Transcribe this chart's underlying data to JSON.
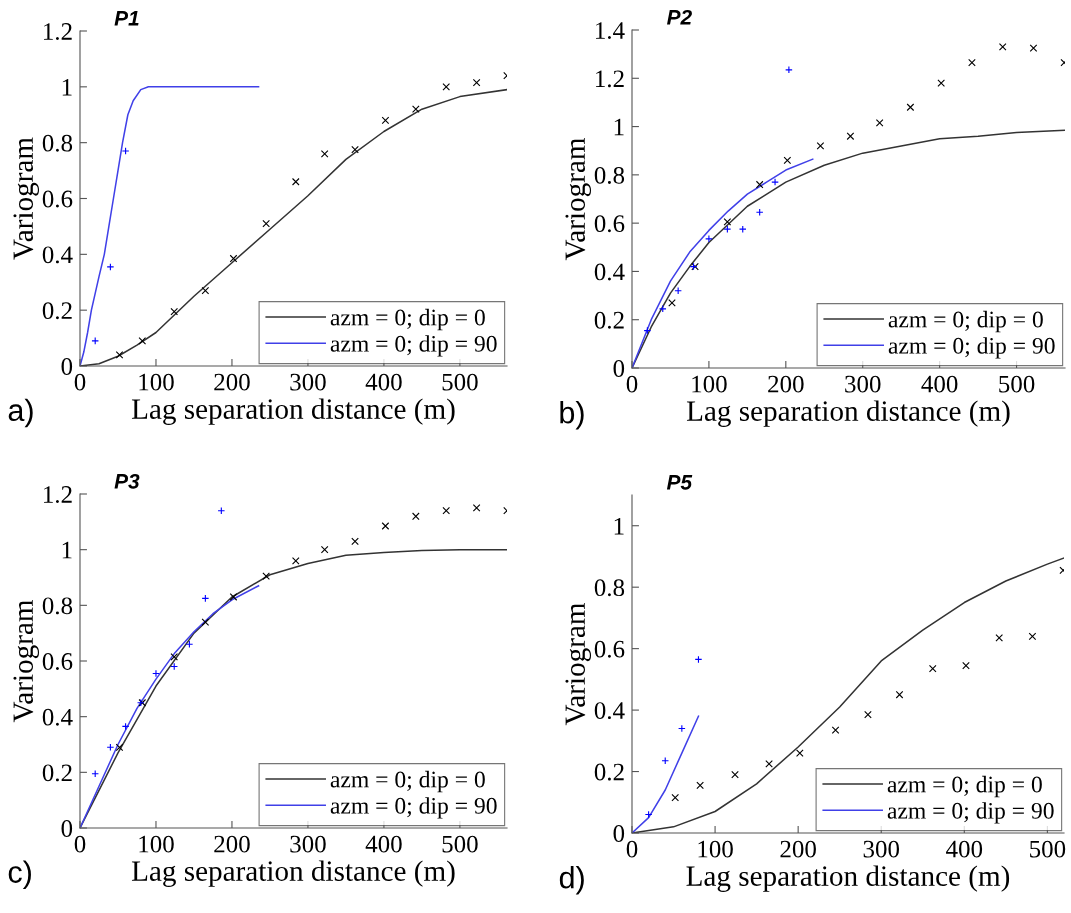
{
  "chart_data": [
    {
      "type": "scatter",
      "title": "P1",
      "xlabel": "Lag separation distance (m)",
      "ylabel": "Variogram",
      "annotations": [
        "a)"
      ],
      "xlim": [
        0,
        562
      ],
      "xticks": [
        0,
        100,
        200,
        300,
        400,
        500
      ],
      "ylim": [
        0,
        1.2
      ],
      "yticks": [
        0,
        0.2,
        0.4,
        0.6,
        0.8,
        1,
        1.2
      ],
      "grid": false,
      "legend": "bottom right",
      "series": [
        {
          "marker": "cross",
          "color": "#000000",
          "x": [
            52,
            82,
            124,
            165,
            202,
            245,
            284,
            322,
            362,
            402,
            442,
            482,
            522,
            562
          ],
          "values": [
            0.04,
            0.09,
            0.195,
            0.27,
            0.385,
            0.51,
            0.66,
            0.76,
            0.775,
            0.88,
            0.92,
            1.0,
            1.015,
            1.04
          ]
        },
        {
          "marker": "plus",
          "color": "#0000ff",
          "x": [
            20,
            40,
            60
          ],
          "values": [
            0.09,
            0.355,
            0.77
          ]
        },
        {
          "type": "line",
          "name": "azm = 0; dip = 0",
          "color": "#333333",
          "x": [
            0,
            25,
            50,
            75,
            100,
            150,
            200,
            250,
            300,
            350,
            400,
            450,
            500,
            562
          ],
          "values": [
            0,
            0.008,
            0.035,
            0.075,
            0.12,
            0.25,
            0.37,
            0.49,
            0.61,
            0.74,
            0.84,
            0.92,
            0.965,
            0.99
          ]
        },
        {
          "type": "line",
          "name": "azm = 0; dip = 90",
          "color": "#4040e8",
          "x": [
            0,
            5,
            10,
            15,
            20,
            25,
            32,
            38,
            44,
            50,
            56,
            63,
            70,
            80,
            90,
            235
          ],
          "values": [
            0,
            0.05,
            0.12,
            0.2,
            0.26,
            0.32,
            0.4,
            0.5,
            0.6,
            0.7,
            0.8,
            0.9,
            0.95,
            0.99,
            1,
            1
          ]
        }
      ]
    },
    {
      "type": "scatter",
      "title": "P2",
      "xlabel": "Lag separation distance (m)",
      "ylabel": "Variogram",
      "annotations": [
        "b)"
      ],
      "xlim": [
        0,
        563
      ],
      "xticks": [
        0,
        100,
        200,
        300,
        400,
        500
      ],
      "ylim": [
        0,
        1.4
      ],
      "yticks": [
        0,
        0.2,
        0.4,
        0.6,
        0.8,
        1,
        1.2,
        1.4
      ],
      "grid": false,
      "legend": "bottom right",
      "series": [
        {
          "marker": "cross",
          "color": "#000000",
          "x": [
            52,
            82,
            124,
            166,
            202,
            245,
            284,
            322,
            362,
            402,
            442,
            482,
            522,
            562
          ],
          "values": [
            0.27,
            0.42,
            0.605,
            0.76,
            0.86,
            0.92,
            0.96,
            1.015,
            1.08,
            1.18,
            1.265,
            1.33,
            1.325,
            1.265
          ]
        },
        {
          "marker": "plus",
          "color": "#0000ff",
          "x": [
            20,
            40,
            60,
            80,
            100,
            124,
            144,
            166,
            186,
            204
          ],
          "values": [
            0.155,
            0.245,
            0.32,
            0.42,
            0.535,
            0.575,
            0.575,
            0.645,
            0.77,
            1.235
          ]
        },
        {
          "type": "line",
          "name": "azm = 0; dip = 0",
          "color": "#333333",
          "x": [
            0,
            25,
            50,
            75,
            100,
            150,
            200,
            250,
            300,
            350,
            400,
            450,
            500,
            562
          ],
          "values": [
            0,
            0.17,
            0.31,
            0.42,
            0.52,
            0.67,
            0.77,
            0.84,
            0.89,
            0.92,
            0.95,
            0.96,
            0.975,
            0.985
          ]
        },
        {
          "type": "line",
          "name": "azm = 0; dip = 90",
          "color": "#4040e8",
          "x": [
            0,
            25,
            50,
            75,
            100,
            125,
            150,
            175,
            200,
            235
          ],
          "values": [
            0,
            0.2,
            0.36,
            0.48,
            0.57,
            0.65,
            0.72,
            0.77,
            0.82,
            0.865
          ]
        }
      ]
    },
    {
      "type": "scatter",
      "title": "P3",
      "xlabel": "Lag separation distance (m)",
      "ylabel": "Variogram",
      "annotations": [
        "c)"
      ],
      "xlim": [
        0,
        562
      ],
      "xticks": [
        0,
        100,
        200,
        300,
        400,
        500
      ],
      "ylim": [
        0,
        1.2
      ],
      "yticks": [
        0,
        0.2,
        0.4,
        0.6,
        0.8,
        1,
        1.2
      ],
      "grid": false,
      "legend": "bottom right",
      "series": [
        {
          "marker": "cross",
          "color": "#000000",
          "x": [
            52,
            82,
            124,
            165,
            202,
            245,
            284,
            322,
            362,
            402,
            442,
            482,
            522,
            562
          ],
          "values": [
            0.29,
            0.45,
            0.615,
            0.74,
            0.83,
            0.905,
            0.96,
            1.0,
            1.03,
            1.085,
            1.12,
            1.14,
            1.15,
            1.14
          ]
        },
        {
          "marker": "plus",
          "color": "#0000ff",
          "x": [
            20,
            40,
            60,
            80,
            100,
            124,
            144,
            165,
            186
          ],
          "values": [
            0.195,
            0.29,
            0.365,
            0.45,
            0.555,
            0.58,
            0.66,
            0.825,
            1.14
          ]
        },
        {
          "type": "line",
          "name": "azm = 0; dip = 0",
          "color": "#333333",
          "x": [
            0,
            50,
            100,
            150,
            200,
            250,
            300,
            350,
            400,
            450,
            500,
            562
          ],
          "values": [
            0,
            0.27,
            0.51,
            0.7,
            0.83,
            0.91,
            0.95,
            0.98,
            0.99,
            0.997,
            1,
            1
          ]
        },
        {
          "type": "line",
          "name": "azm = 0; dip = 90",
          "color": "#4040e8",
          "x": [
            0,
            25,
            50,
            75,
            100,
            125,
            150,
            175,
            200,
            235
          ],
          "values": [
            0,
            0.15,
            0.3,
            0.43,
            0.535,
            0.63,
            0.705,
            0.77,
            0.82,
            0.87
          ]
        }
      ]
    },
    {
      "type": "scatter",
      "title": "P5",
      "xlabel": "Lag separation distance (m)",
      "ylabel": "Variogram",
      "annotations": [
        "d)"
      ],
      "xlim": [
        0,
        520
      ],
      "xticks": [
        0,
        100,
        200,
        300,
        400,
        500
      ],
      "ylim": [
        0,
        1.1
      ],
      "yticks": [
        0,
        0.2,
        0.4,
        0.6,
        0.8,
        1
      ],
      "grid": false,
      "legend": "bottom right",
      "series": [
        {
          "marker": "cross",
          "color": "#000000",
          "x": [
            52,
            82,
            124,
            165,
            202,
            245,
            284,
            322,
            362,
            402,
            442,
            482,
            519
          ],
          "values": [
            0.115,
            0.155,
            0.19,
            0.225,
            0.26,
            0.335,
            0.385,
            0.45,
            0.535,
            0.545,
            0.635,
            0.64,
            0.855
          ]
        },
        {
          "marker": "plus",
          "color": "#0000ff",
          "x": [
            20,
            40,
            60,
            80
          ],
          "values": [
            0.06,
            0.235,
            0.34,
            0.565
          ]
        },
        {
          "type": "line",
          "name": "azm = 0; dip = 0",
          "color": "#333333",
          "x": [
            0,
            50,
            100,
            150,
            200,
            250,
            300,
            350,
            400,
            450,
            500,
            520
          ],
          "values": [
            0,
            0.02,
            0.07,
            0.16,
            0.28,
            0.41,
            0.56,
            0.66,
            0.75,
            0.82,
            0.875,
            0.895
          ]
        },
        {
          "type": "line",
          "name": "azm = 0; dip = 90",
          "color": "#4040e8",
          "x": [
            0,
            20,
            40,
            60,
            80
          ],
          "values": [
            0,
            0.05,
            0.14,
            0.26,
            0.38
          ]
        }
      ]
    }
  ]
}
